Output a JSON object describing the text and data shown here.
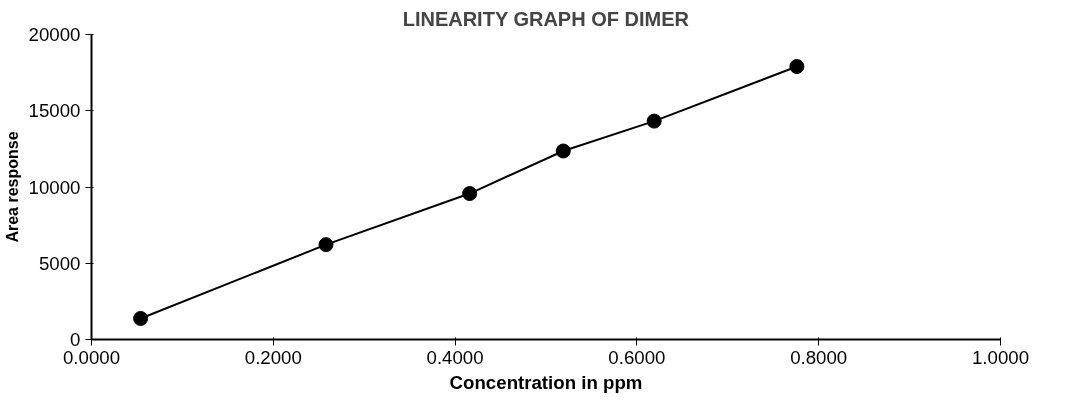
{
  "chart_data": {
    "type": "line",
    "title": "LINEARITY GRAPH OF DIMER",
    "xlabel": "Concentration in ppm",
    "ylabel": "Area response",
    "x": [
      0.054,
      0.258,
      0.416,
      0.519,
      0.619,
      0.776
    ],
    "series": [
      {
        "color": "#000000",
        "values": [
          1380,
          6220,
          9570,
          12360,
          14320,
          17900
        ]
      }
    ],
    "xlim": [
      0,
      1
    ],
    "xticks": [
      {
        "value": 0,
        "label": "0.0000"
      },
      {
        "value": 0.2,
        "label": "0.2000"
      },
      {
        "value": 0.4,
        "label": "0.4000"
      },
      {
        "value": 0.6,
        "label": "0.6000"
      },
      {
        "value": 0.8,
        "label": "0.8000"
      },
      {
        "value": 1,
        "label": "1.0000"
      }
    ],
    "ylim": [
      0,
      20000
    ],
    "yticks": [
      0,
      5000,
      10000,
      15000,
      20000
    ],
    "grid": false,
    "marker": "circle",
    "line_style": "solid"
  }
}
